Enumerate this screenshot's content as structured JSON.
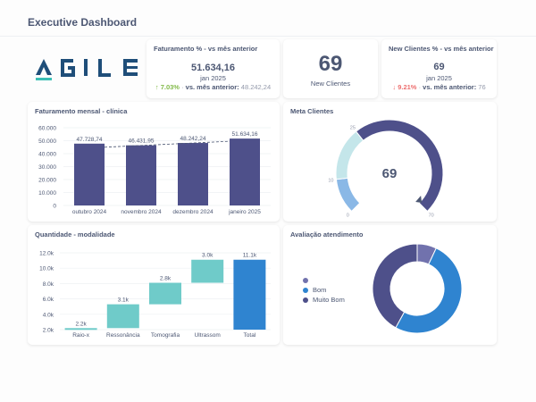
{
  "header": {
    "title": "Executive Dashboard"
  },
  "logo": {
    "text": "AGILE",
    "colors": {
      "primary": "#1f4e79",
      "accent": "#3bbfb5"
    }
  },
  "kpi_faturamento": {
    "title": "Faturamento % - vs mês anterior",
    "value": "51.634,16",
    "period": "jan 2025",
    "change_arrow": "↑",
    "change_pct": "7.03%",
    "separator": "·",
    "compare_label": "vs. mês anterior:",
    "compare_value": "48.242,24"
  },
  "kpi_new_clients": {
    "value": "69",
    "label": "New Clientes"
  },
  "kpi_new_clients_pct": {
    "title": "New Clientes % - vs mês anterior",
    "value": "69",
    "period": "jan 2025",
    "change_arrow": "↓",
    "change_pct": "9.21%",
    "separator": "·",
    "compare_label": "vs. mês anterior:",
    "compare_value": "76"
  },
  "faturamento_chart": {
    "title": "Faturamento mensal - clínica"
  },
  "meta_clientes": {
    "title": "Meta Clientes",
    "value": "69",
    "ticks": [
      "0",
      "10",
      "25",
      "70"
    ]
  },
  "quantidade_chart": {
    "title": "Quantidade - modalidade"
  },
  "avaliacao": {
    "title": "Avaliação atendimento",
    "legend": [
      {
        "label": "",
        "color": "#7172ad"
      },
      {
        "label": "Bom",
        "color": "#2f84d0"
      },
      {
        "label": "Muito Bom",
        "color": "#4e508a"
      }
    ]
  },
  "chart_data": [
    {
      "type": "bar",
      "title": "Faturamento mensal - clínica",
      "categories": [
        "outubro 2024",
        "novembro 2024",
        "dezembro 2024",
        "janeiro 2025"
      ],
      "values": [
        47728.74,
        46431.95,
        48242.24,
        51634.16
      ],
      "labels": [
        "47.728,74",
        "46.431,95",
        "48.242,24",
        "51.634,16"
      ],
      "yticks": [
        "0",
        "10.000",
        "20.000",
        "30.000",
        "40.000",
        "50.000",
        "60.000"
      ],
      "ylim": [
        0,
        60000
      ],
      "color": "#4e508a",
      "trend_line": "dashed",
      "grid": true
    },
    {
      "type": "gauge",
      "title": "Meta Clientes",
      "value": 69,
      "min": 0,
      "max": 70,
      "segments": [
        {
          "from": 0,
          "to": 10,
          "color": "#8ab8e6"
        },
        {
          "from": 10,
          "to": 25,
          "color": "#c4e6ea"
        },
        {
          "from": 25,
          "to": 70,
          "color": "#4e508a"
        }
      ]
    },
    {
      "type": "waterfall",
      "title": "Quantidade - modalidade",
      "categories": [
        "Raio-x",
        "Ressonância",
        "Tomografia",
        "Ultrassom",
        "Total"
      ],
      "values": [
        2.2,
        3.1,
        2.8,
        3.0,
        11.1
      ],
      "labels": [
        "2.2k",
        "3.1k",
        "2.8k",
        "3.0k",
        "11.1k"
      ],
      "yticks": [
        "2.0k",
        "4.0k",
        "6.0k",
        "8.0k",
        "10.0k",
        "12.0k"
      ],
      "ylim": [
        2000,
        12000
      ],
      "colors": {
        "step": "#6fcbc9",
        "total": "#2f84d0"
      }
    },
    {
      "type": "pie",
      "title": "Avaliação atendimento",
      "donut": true,
      "categories": [
        "",
        "Bom",
        "Muito Bom"
      ],
      "values": [
        7,
        51,
        42
      ],
      "colors": [
        "#7172ad",
        "#2f84d0",
        "#4e508a"
      ],
      "legend_position": "left"
    }
  ]
}
